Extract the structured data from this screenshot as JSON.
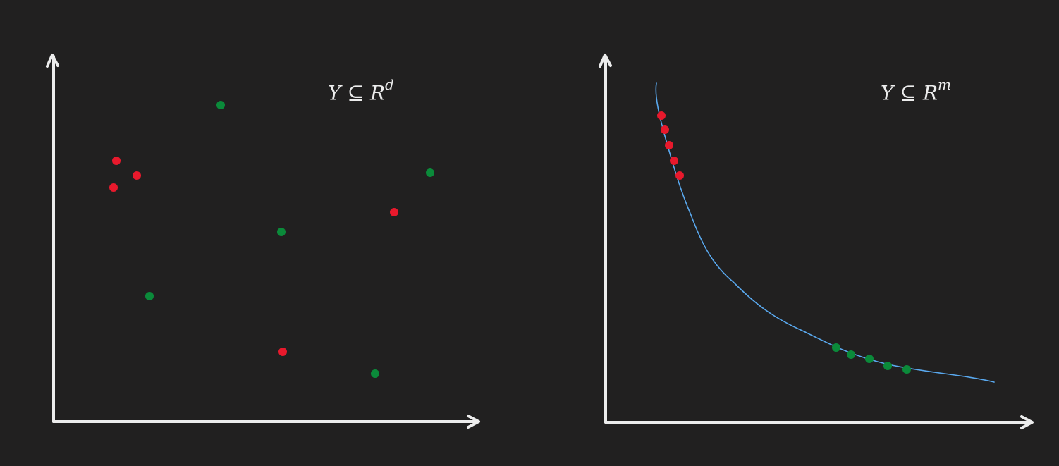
{
  "colors": {
    "background": "#212020",
    "axis": "#ececec",
    "red_point": "#e8192c",
    "green_point": "#0b8a3a",
    "curve": "#5aa9ef"
  },
  "left_panel": {
    "label": {
      "var": "Y",
      "op": "⊆",
      "space": "R",
      "exp": "d"
    },
    "red_points": [
      [
        165,
        228
      ],
      [
        194,
        249
      ],
      [
        161,
        266
      ],
      [
        559,
        301
      ],
      [
        401,
        499
      ]
    ],
    "green_points": [
      [
        313,
        149
      ],
      [
        610,
        245
      ],
      [
        399,
        329
      ],
      [
        212,
        420
      ],
      [
        532,
        530
      ]
    ]
  },
  "right_panel": {
    "label": {
      "var": "Y",
      "op": "⊆",
      "space": "R",
      "exp": "m"
    },
    "red_points": [
      [
        938,
        164
      ],
      [
        943,
        184
      ],
      [
        949,
        206
      ],
      [
        956,
        228
      ],
      [
        964,
        249
      ]
    ],
    "green_points": [
      [
        1186,
        493
      ],
      [
        1207,
        503
      ],
      [
        1233,
        509
      ],
      [
        1259,
        519
      ],
      [
        1286,
        524
      ]
    ]
  }
}
